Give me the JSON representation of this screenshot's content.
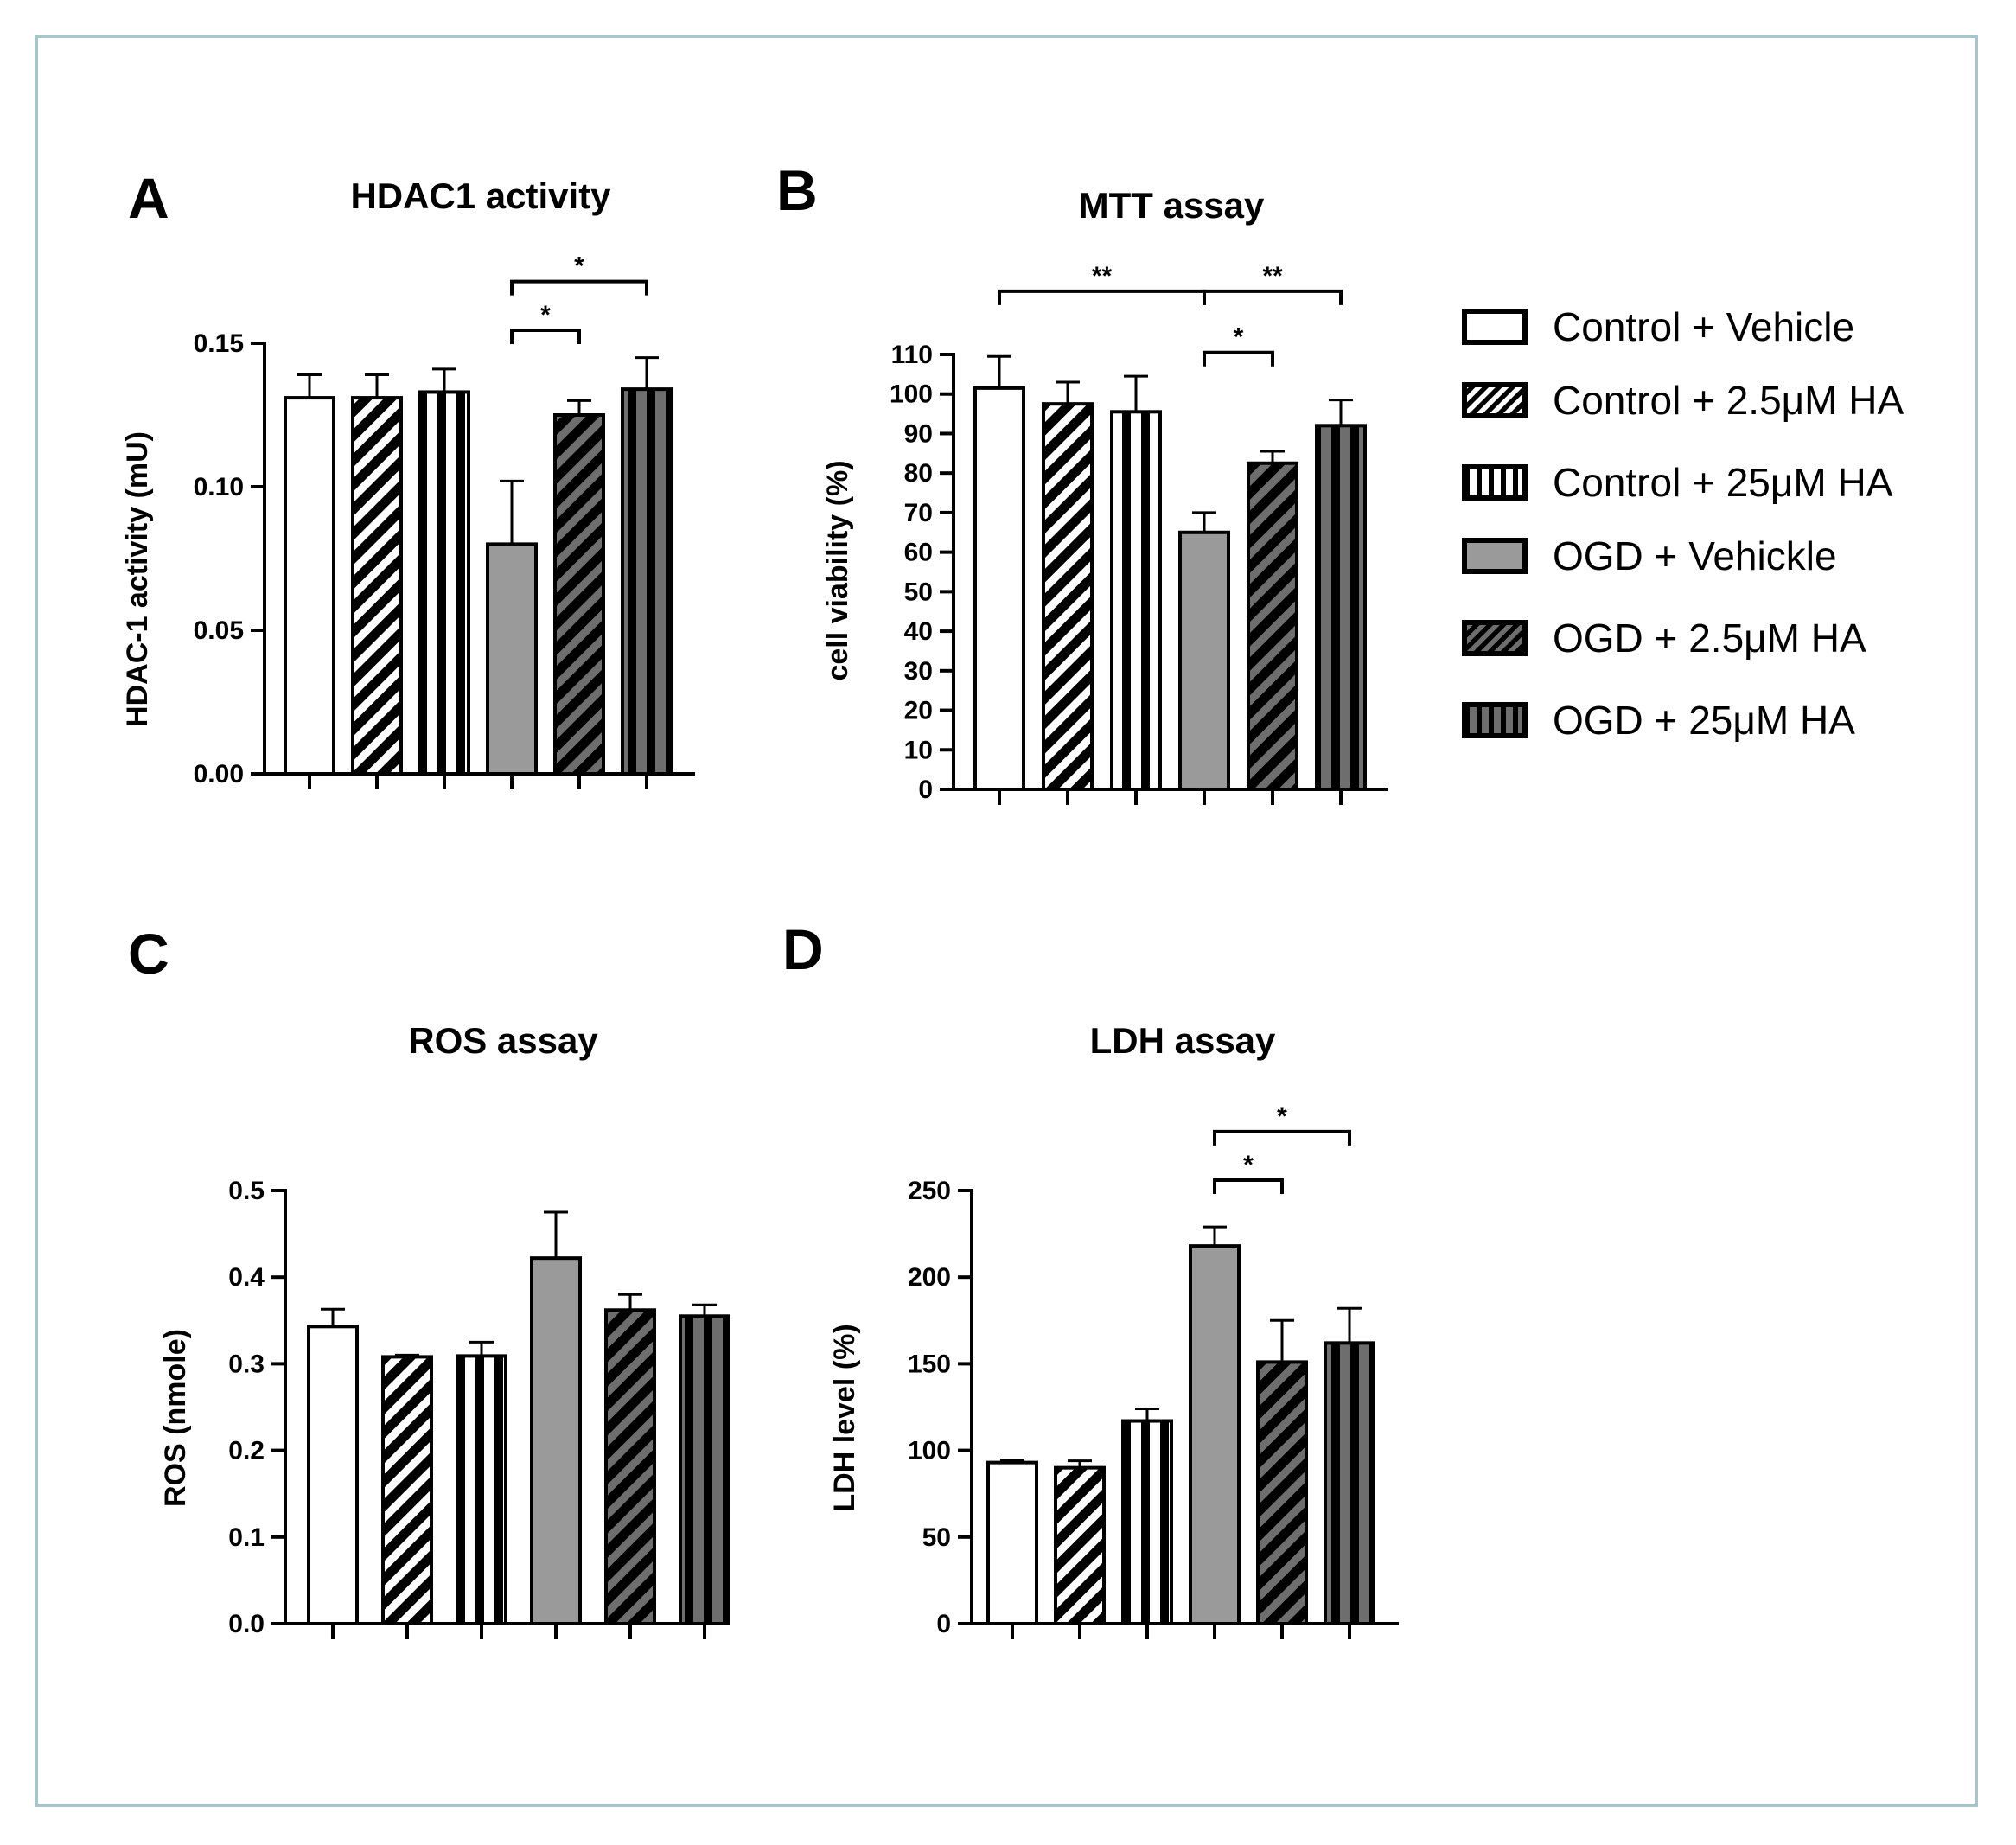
{
  "legend": [
    {
      "label": "Control + Vehicle",
      "fill": "#ffffff",
      "pattern": "none"
    },
    {
      "label": "Control + 2.5μM HA",
      "fill": "#ffffff",
      "pattern": "diag"
    },
    {
      "label": "Control + 25μM HA",
      "fill": "#ffffff",
      "pattern": "vert"
    },
    {
      "label": "OGD + Vehickle",
      "fill": "#9a9a9a",
      "pattern": "none"
    },
    {
      "label": "OGD + 2.5μM HA",
      "fill": "#6e6e6e",
      "pattern": "diag"
    },
    {
      "label": "OGD + 25μM HA",
      "fill": "#6e6e6e",
      "pattern": "vert"
    }
  ],
  "chart_data": [
    {
      "panel": "A",
      "type": "bar",
      "title": "HDAC1 activity",
      "ylabel": "HDAC-1 activity (mU)",
      "ylim": [
        0,
        0.15
      ],
      "yticks": [
        0.0,
        0.05,
        0.1,
        0.15
      ],
      "ytick_labels": [
        "0.00",
        "0.05",
        "0.10",
        "0.15"
      ],
      "categories": [
        "Control + Vehicle",
        "Control + 2.5μM HA",
        "Control + 25μM HA",
        "OGD + Vehickle",
        "OGD + 2.5μM HA",
        "OGD + 25μM HA"
      ],
      "values": [
        0.131,
        0.131,
        0.133,
        0.08,
        0.125,
        0.134
      ],
      "errors": [
        0.008,
        0.008,
        0.008,
        0.022,
        0.005,
        0.011
      ],
      "significance": [
        {
          "from": 3,
          "to": 4,
          "label": "*",
          "y": 0.1545
        },
        {
          "from": 3,
          "to": 5,
          "label": "*",
          "y": 0.1715
        }
      ]
    },
    {
      "panel": "B",
      "type": "bar",
      "title": "MTT assay",
      "ylabel": "cell viability (%)",
      "ylim": [
        0,
        110
      ],
      "yticks": [
        0,
        10,
        20,
        30,
        40,
        50,
        60,
        70,
        80,
        90,
        100,
        110
      ],
      "ytick_labels": [
        "0",
        "10",
        "20",
        "30",
        "40",
        "50",
        "60",
        "70",
        "80",
        "90",
        "100",
        "110"
      ],
      "categories": [
        "Control + Vehicle",
        "Control + 2.5μM HA",
        "Control + 25μM HA",
        "OGD + Vehickle",
        "OGD + 2.5μM HA",
        "OGD + 25μM HA"
      ],
      "values": [
        101.5,
        97.5,
        95.5,
        65,
        82.5,
        92
      ],
      "errors": [
        8,
        5.5,
        9,
        5,
        3,
        6.5
      ],
      "significance": [
        {
          "from": 0,
          "to": 3,
          "label": "**",
          "y": 126
        },
        {
          "from": 3,
          "to": 5,
          "label": "**",
          "y": 126
        },
        {
          "from": 3,
          "to": 4,
          "label": "*",
          "y": 110.5
        }
      ]
    },
    {
      "panel": "C",
      "type": "bar",
      "title": "ROS assay",
      "ylabel": "ROS (nmole)",
      "ylim": [
        0,
        0.5
      ],
      "yticks": [
        0.0,
        0.1,
        0.2,
        0.3,
        0.4,
        0.5
      ],
      "ytick_labels": [
        "0.0",
        "0.1",
        "0.2",
        "0.3",
        "0.4",
        "0.5"
      ],
      "categories": [
        "Control + Vehicle",
        "Control + 2.5μM HA",
        "Control + 25μM HA",
        "OGD + Vehickle",
        "OGD + 2.5μM HA",
        "OGD + 25μM HA"
      ],
      "values": [
        0.343,
        0.308,
        0.309,
        0.422,
        0.362,
        0.355
      ],
      "errors": [
        0.02,
        0.002,
        0.016,
        0.053,
        0.018,
        0.013
      ],
      "significance": []
    },
    {
      "panel": "D",
      "type": "bar",
      "title": "LDH assay",
      "ylabel": "LDH level (%)",
      "ylim": [
        0,
        250
      ],
      "yticks": [
        0,
        50,
        100,
        150,
        200,
        250
      ],
      "ytick_labels": [
        "0",
        "50",
        "100",
        "150",
        "200",
        "250"
      ],
      "categories": [
        "Control + Vehicle",
        "Control + 2.5μM HA",
        "Control + 25μM HA",
        "OGD + Vehickle",
        "OGD + 2.5μM HA",
        "OGD + 25μM HA"
      ],
      "values": [
        93,
        90,
        117,
        218,
        151,
        162
      ],
      "errors": [
        1.5,
        4,
        7,
        11,
        24,
        20
      ],
      "significance": [
        {
          "from": 3,
          "to": 4,
          "label": "*",
          "y": 256
        },
        {
          "from": 3,
          "to": 5,
          "label": "*",
          "y": 284
        }
      ]
    }
  ]
}
